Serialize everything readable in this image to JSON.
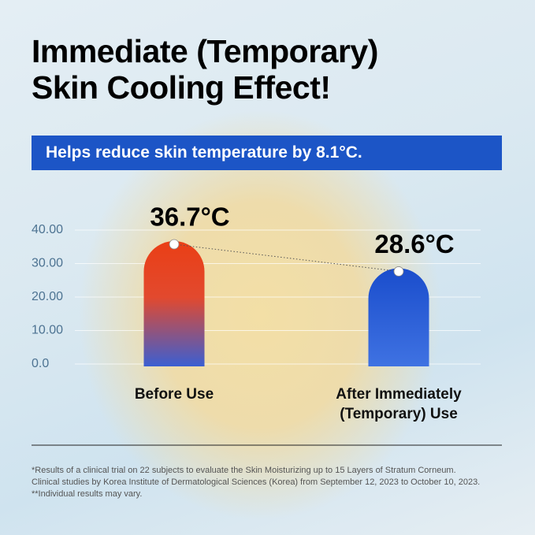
{
  "chart_data": {
    "type": "bar",
    "title": [
      "Immediate (Temporary)",
      "Skin Cooling Effect!"
    ],
    "subtitle": "Helps reduce skin temperature by 8.1°C.",
    "categories": [
      "Before Use",
      "After Immediately (Temporary) Use"
    ],
    "values": [
      36.7,
      28.6
    ],
    "value_labels": [
      "36.7°C",
      "28.6°C"
    ],
    "ylim": [
      0,
      40
    ],
    "yticks": [
      {
        "value": 0,
        "label": "0.0"
      },
      {
        "value": 10,
        "label": "10.00"
      },
      {
        "value": 20,
        "label": "20.00"
      },
      {
        "value": 30,
        "label": "30.00"
      },
      {
        "value": 40,
        "label": "40.00"
      }
    ],
    "grid": true,
    "notes": [
      "*Results of a clinical trial on 22 subjects to evaluate the Skin Moisturizing up to 15 Layers of Stratum Corneum.",
      "Clinical studies by Korea Institute of Dermatological Sciences (Korea) from September 12, 2023 to October 10, 2023.",
      "**Individual results may vary."
    ]
  }
}
